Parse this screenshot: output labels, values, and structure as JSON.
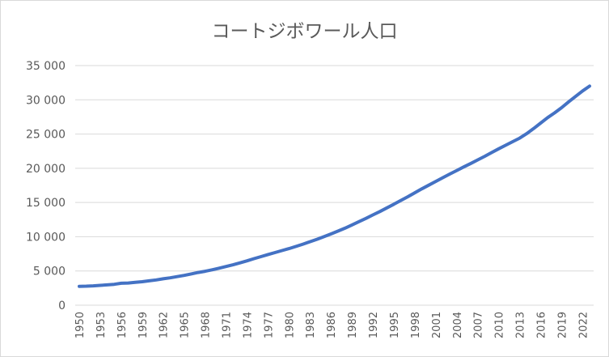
{
  "chart_data": {
    "type": "line",
    "title": "コートジボワール人口",
    "xlabel": "",
    "ylabel": "",
    "ylim": [
      0,
      35000
    ],
    "y_ticks": [
      "0",
      "5 000",
      "10 000",
      "15 000",
      "20 000",
      "25 000",
      "30 000",
      "35 000"
    ],
    "x_ticks": [
      "1950",
      "1953",
      "1956",
      "1959",
      "1962",
      "1965",
      "1968",
      "1971",
      "1974",
      "1977",
      "1980",
      "1983",
      "1986",
      "1989",
      "1992",
      "1995",
      "1998",
      "2001",
      "2004",
      "2007",
      "2010",
      "2013",
      "2016",
      "2019",
      "2022"
    ],
    "grid": "horizontal",
    "legend": "none",
    "line_color": "#4472c4",
    "gridline_color": "#d9d9d9",
    "series": [
      {
        "x": [
          1950,
          1951,
          1952,
          1953,
          1954,
          1955,
          1956,
          1957,
          1958,
          1959,
          1960,
          1961,
          1962,
          1963,
          1964,
          1965,
          1966,
          1967,
          1968,
          1969,
          1970,
          1971,
          1972,
          1973,
          1974,
          1975,
          1976,
          1977,
          1978,
          1979,
          1980,
          1981,
          1982,
          1983,
          1984,
          1985,
          1986,
          1987,
          1988,
          1989,
          1990,
          1991,
          1992,
          1993,
          1994,
          1995,
          1996,
          1997,
          1998,
          1999,
          2000,
          2001,
          2002,
          2003,
          2004,
          2005,
          2006,
          2007,
          2008,
          2009,
          2010,
          2011,
          2012,
          2013,
          2014,
          2015,
          2016,
          2017,
          2018,
          2019,
          2020,
          2021,
          2022,
          2023
        ],
        "values": [
          2750,
          2780,
          2830,
          2900,
          2970,
          3050,
          3200,
          3240,
          3330,
          3430,
          3560,
          3690,
          3850,
          4000,
          4170,
          4350,
          4560,
          4780,
          4950,
          5170,
          5400,
          5650,
          5900,
          6180,
          6480,
          6800,
          7100,
          7400,
          7680,
          7980,
          8260,
          8580,
          8920,
          9270,
          9630,
          10000,
          10400,
          10820,
          11250,
          11720,
          12200,
          12680,
          13180,
          13680,
          14210,
          14750,
          15300,
          15850,
          16420,
          16990,
          17540,
          18080,
          18620,
          19150,
          19680,
          20200,
          20710,
          21220,
          21750,
          22300,
          22850,
          23370,
          23880,
          24400,
          25050,
          25800,
          26600,
          27400,
          28100,
          28850,
          29700,
          30500,
          31300,
          32000
        ]
      }
    ]
  }
}
